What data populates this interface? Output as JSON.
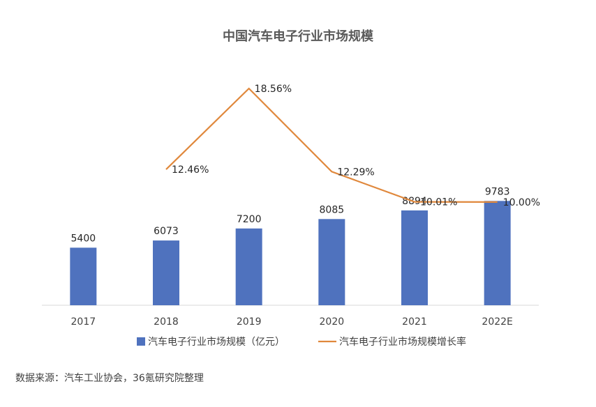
{
  "title": "中国汽车电子行业市场规模",
  "source": "数据来源：汽车工业协会，36氪研究院整理",
  "colors": {
    "bar": "#4f72be",
    "line": "#e0883c",
    "axis": "#d9d9d9"
  },
  "chart_data": {
    "type": "bar",
    "title": "中国汽车电子行业市场规模",
    "categories": [
      "2017",
      "2018",
      "2019",
      "2020",
      "2021",
      "2022E"
    ],
    "series": [
      {
        "name": "汽车电子行业市场规模（亿元）",
        "type": "bar",
        "values": [
          5400,
          6073,
          7200,
          8085,
          8894,
          9783
        ],
        "labels": [
          "5400",
          "6073",
          "7200",
          "8085",
          "8894",
          "9783"
        ]
      },
      {
        "name": "汽车电子行业市场规模增长率",
        "type": "line",
        "values": [
          null,
          12.46,
          18.56,
          12.29,
          10.01,
          10.0
        ],
        "labels": [
          "",
          "12.46%",
          "18.56%",
          "12.29%",
          "10.01%",
          "10.00%"
        ]
      }
    ],
    "legend": "bottom",
    "grid": false
  }
}
